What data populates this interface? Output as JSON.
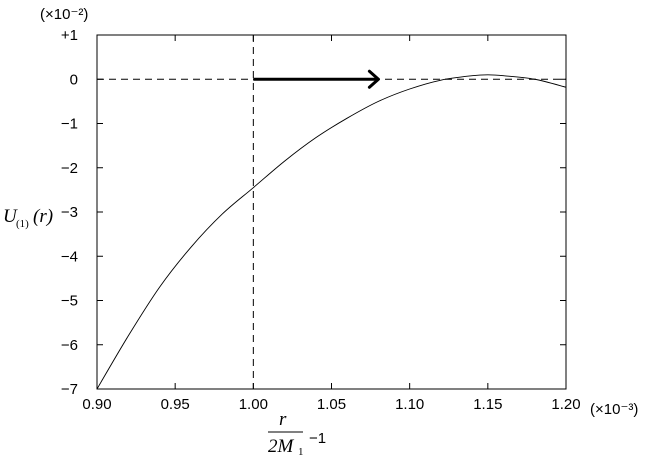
{
  "chart_data": {
    "type": "line",
    "x_scale_label": "(×10⁻³)",
    "y_scale_label": "(×10⁻²)",
    "xlim": [
      0.9,
      1.2
    ],
    "ylim": [
      -7,
      1
    ],
    "x_ticks": [
      "0.90",
      "0.95",
      "1.00",
      "1.05",
      "1.10",
      "1.15",
      "1.20"
    ],
    "y_ticks": [
      "+1",
      "0",
      "−1",
      "−2",
      "−3",
      "−4",
      "−5",
      "−6",
      "−7"
    ],
    "ylabel": {
      "main": "U",
      "subscript": "(1)",
      "arg": "(r)"
    },
    "xlabel": {
      "numerator": "r",
      "denominator": "2M",
      "denominator_sub": "1",
      "suffix": "−1"
    },
    "series": [
      {
        "x": [
          0.9,
          0.92,
          0.94,
          0.96,
          0.98,
          1.0,
          1.02,
          1.04,
          1.06,
          1.08,
          1.1,
          1.12,
          1.14,
          1.15,
          1.16,
          1.18,
          1.2
        ],
        "y": [
          -7.0,
          -5.8,
          -4.7,
          -3.8,
          -3.05,
          -2.45,
          -1.85,
          -1.32,
          -0.88,
          -0.5,
          -0.22,
          -0.02,
          0.08,
          0.1,
          0.08,
          0.0,
          -0.18
        ]
      }
    ],
    "reference_lines": {
      "horizontal_y": 0,
      "vertical_x": 1.0
    },
    "arrow": {
      "x_start": 1.0,
      "x_end": 1.08,
      "y": 0
    }
  }
}
